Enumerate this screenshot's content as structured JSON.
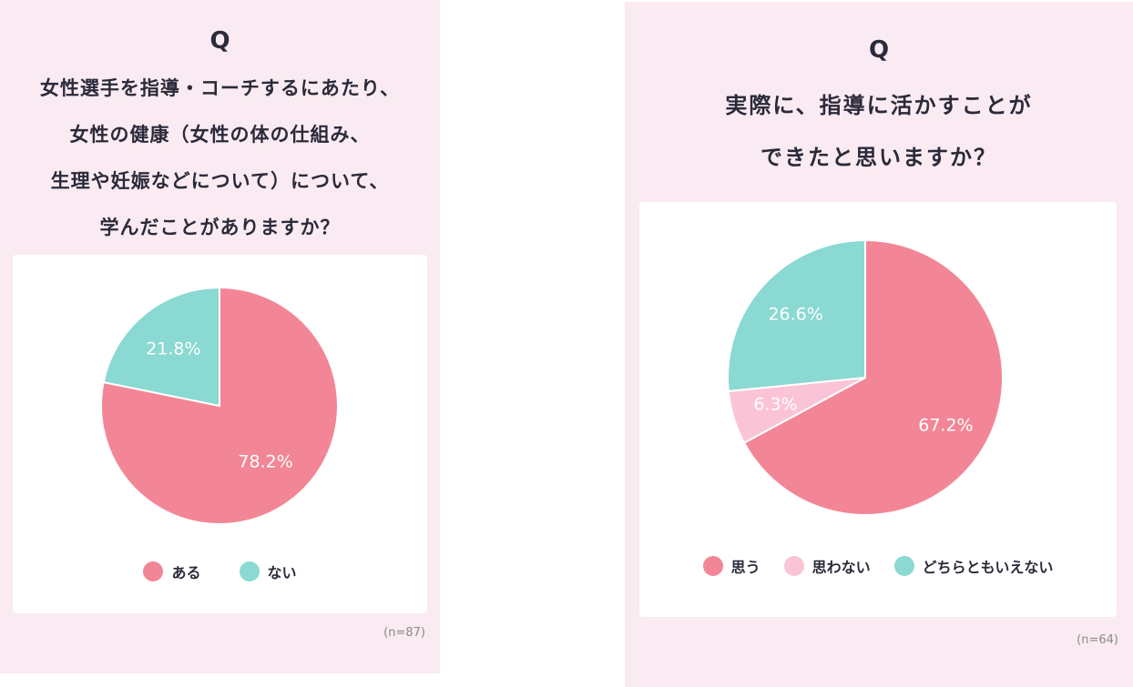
{
  "colors": {
    "background": "#f9ebf1",
    "pink": "#f38696",
    "light_pink": "#fbc4d6",
    "teal": "#8ad9d2",
    "text": "#2b2a3a"
  },
  "left": {
    "q": "Q",
    "question": "女性選手を指導・コーチするにあたり、\n女性の健康（女性の体の仕組み、\n生理や妊娠などについて）について、\n学んだことがありますか？",
    "n": "(n=87)",
    "legend": [
      {
        "label": "ある",
        "color": "#f38696"
      },
      {
        "label": "ない",
        "color": "#8ad9d2"
      }
    ],
    "labels": [
      "78.2%",
      "21.8%"
    ]
  },
  "right": {
    "q": "Q",
    "question": "実際に、指導に活かすことが\nできたと思いますか？",
    "n": "(n=64)",
    "legend": [
      {
        "label": "思う",
        "color": "#f38696"
      },
      {
        "label": "思わない",
        "color": "#fbc4d6"
      },
      {
        "label": "どちらともいえない",
        "color": "#8ad9d2"
      }
    ],
    "labels": [
      "67.2%",
      "6.3%",
      "26.6%"
    ]
  },
  "chart_data": [
    {
      "type": "pie",
      "categories": [
        "ある",
        "ない"
      ],
      "values": [
        78.2,
        21.8
      ],
      "colors": [
        "#f38696",
        "#8ad9d2"
      ],
      "legend_position": "bottom"
    },
    {
      "type": "pie",
      "categories": [
        "思う",
        "思わない",
        "どちらともいえない"
      ],
      "values": [
        67.2,
        6.3,
        26.6
      ],
      "colors": [
        "#f38696",
        "#fbc4d6",
        "#8ad9d2"
      ],
      "legend_position": "bottom"
    }
  ]
}
